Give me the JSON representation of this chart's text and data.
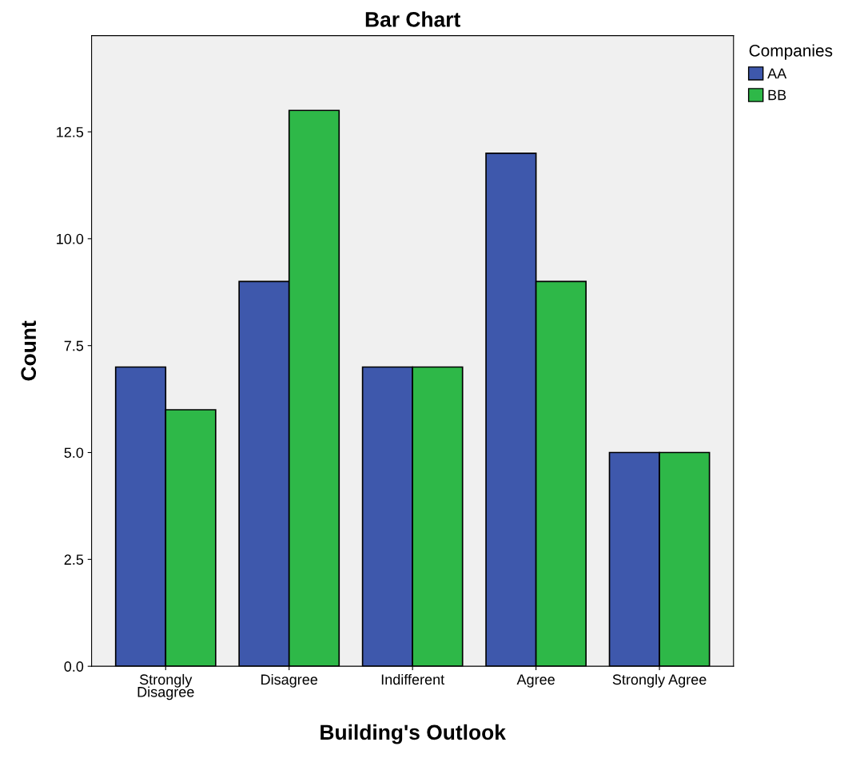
{
  "chart_data": {
    "type": "bar",
    "title": "Bar Chart",
    "xlabel": "Building's Outlook",
    "ylabel": "Count",
    "legend_title": "Companies",
    "categories": [
      "Strongly\nDisagree",
      "Disagree",
      "Indifferent",
      "Agree",
      "Strongly Agree"
    ],
    "series": [
      {
        "name": "AA",
        "color": "#3e58ac",
        "values": [
          7,
          9,
          7,
          12,
          5
        ]
      },
      {
        "name": "BB",
        "color": "#2eb848",
        "values": [
          6,
          13,
          7,
          9,
          5
        ]
      }
    ],
    "ylim": [
      0,
      14.75
    ],
    "yticks": [
      {
        "value": 0,
        "label": "0.0"
      },
      {
        "value": 2.5,
        "label": "2.5"
      },
      {
        "value": 5,
        "label": "5.0"
      },
      {
        "value": 7.5,
        "label": "7.5"
      },
      {
        "value": 10,
        "label": "10.0"
      },
      {
        "value": 12.5,
        "label": "12.5"
      }
    ],
    "grid": false,
    "legend": "top right"
  }
}
